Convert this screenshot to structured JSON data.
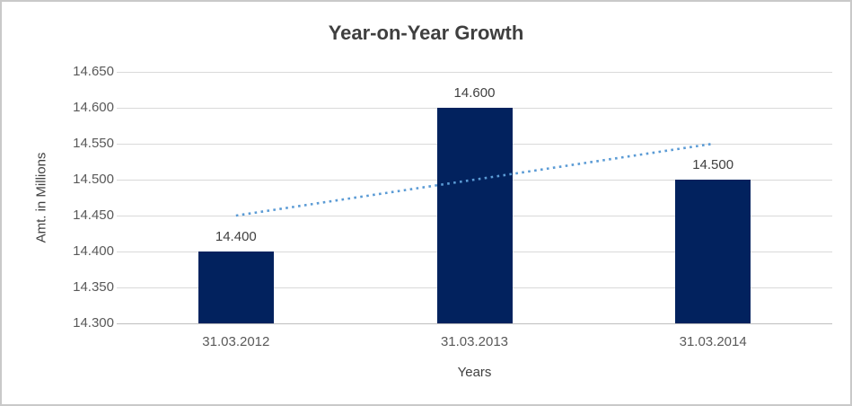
{
  "chart_data": {
    "type": "bar",
    "title": "Year-on-Year Growth",
    "xlabel": "Years",
    "ylabel": "Amt. in Millions",
    "categories": [
      "31.03.2012",
      "31.03.2013",
      "31.03.2014"
    ],
    "values": [
      14.4,
      14.6,
      14.5
    ],
    "data_labels": [
      "14.400",
      "14.600",
      "14.500"
    ],
    "ytick_labels": [
      "14.300",
      "14.350",
      "14.400",
      "14.450",
      "14.500",
      "14.550",
      "14.600",
      "14.650"
    ],
    "ylim": [
      14.3,
      14.65
    ],
    "ytick_step": 0.05,
    "grid": true,
    "legend": "none",
    "bar_color": "#02225e",
    "gridline_color": "#d9d9d9",
    "axis_line_color": "#bfbfbf",
    "text_color": "#595959",
    "title_color": "#3f3f3f",
    "trendline": {
      "type": "linear",
      "style": "dotted",
      "color": "#5b9bd5",
      "start_value": 14.45,
      "end_value": 14.55
    }
  }
}
